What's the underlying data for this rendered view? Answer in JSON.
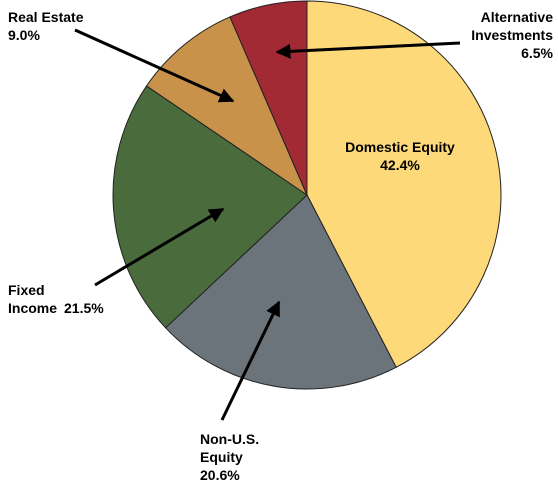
{
  "chart_data": {
    "type": "pie",
    "categories": [
      "Domestic Equity",
      "Non-U.S. Equity",
      "Fixed Income",
      "Real Estate",
      "Alternative Investments"
    ],
    "values": [
      42.4,
      20.6,
      21.5,
      9.0,
      6.5
    ],
    "value_labels": [
      "42.4%",
      "20.6%",
      "21.5%",
      "9.0%",
      "6.5%"
    ],
    "colors": [
      "#fdd97a",
      "#6b747b",
      "#4a6b3b",
      "#c9924b",
      "#a12a35"
    ]
  }
}
